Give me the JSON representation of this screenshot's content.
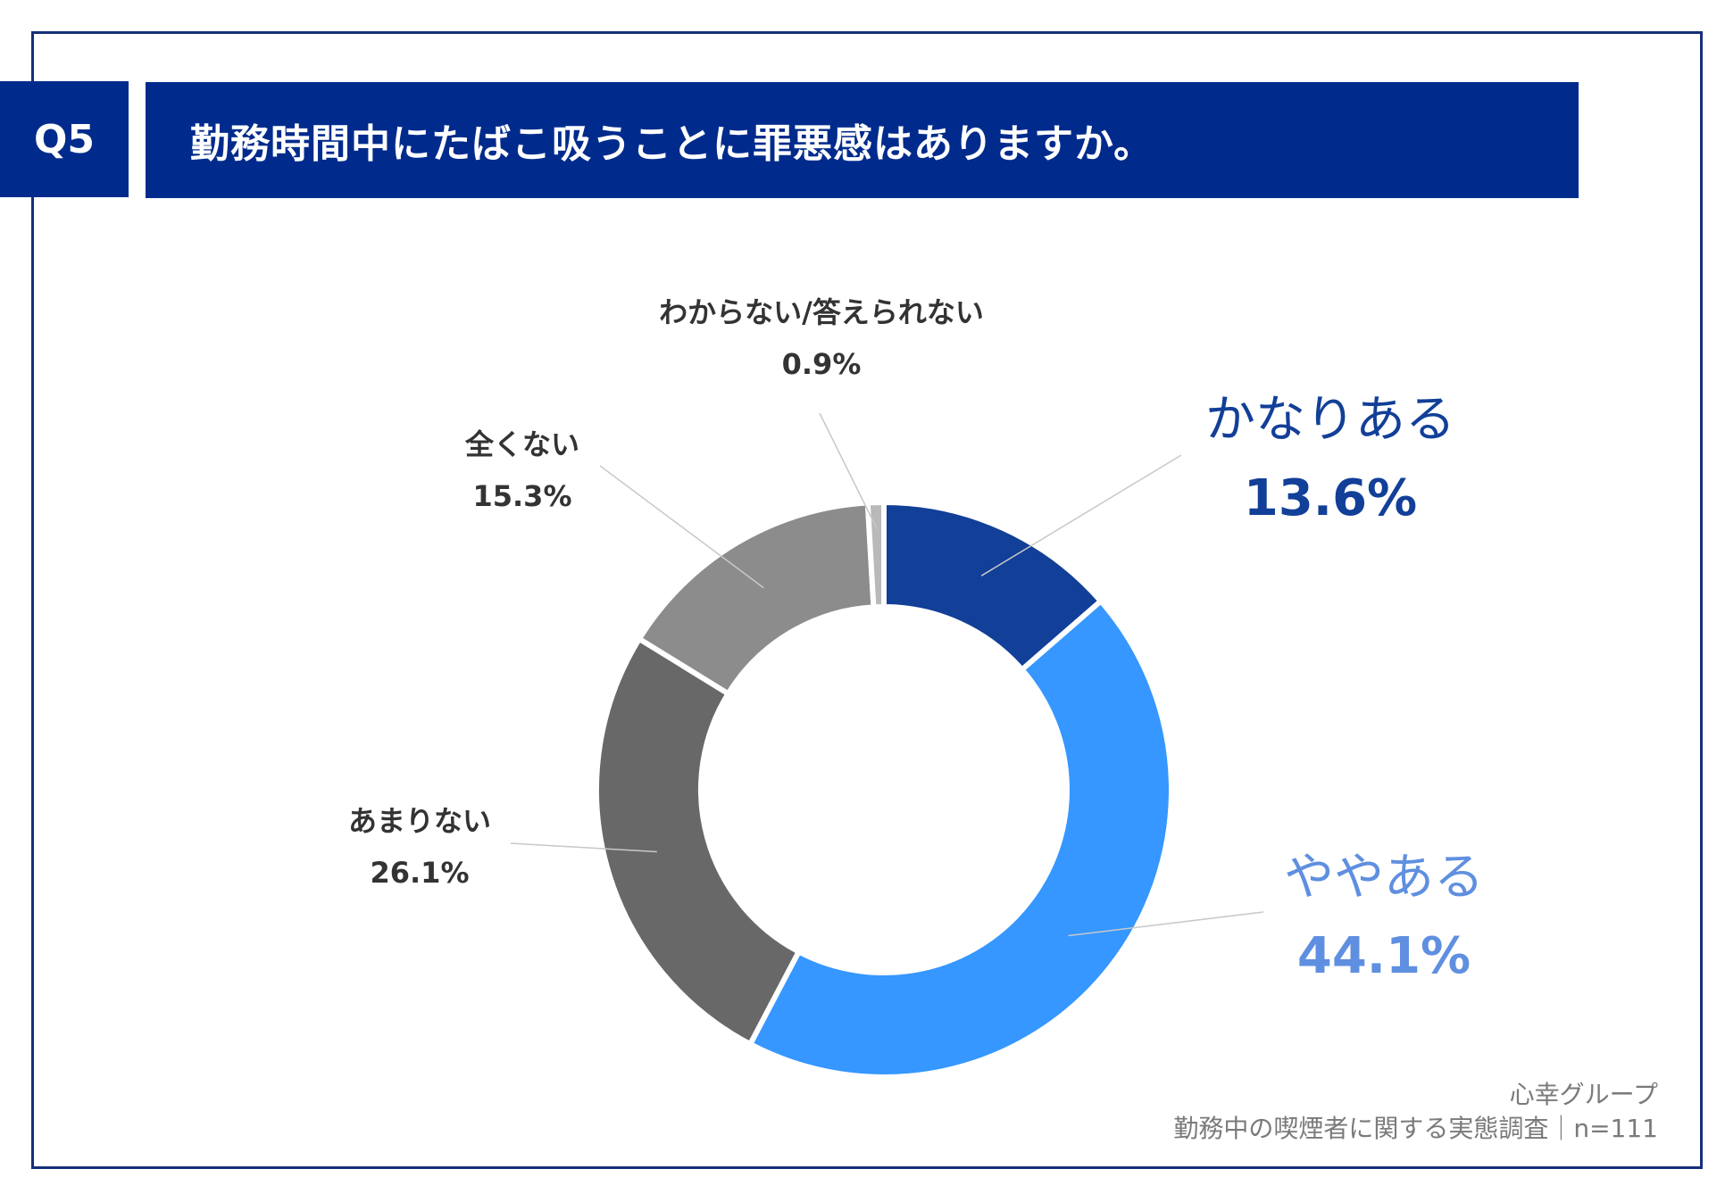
{
  "header": {
    "question_no": "Q5",
    "question": "勤務時間中にたばこ吸うことに罪悪感はありますか。"
  },
  "chart_data": {
    "type": "pie",
    "donut": true,
    "slices": [
      {
        "label": "かなりある",
        "value": 13.6,
        "value_label": "13.6%",
        "color": "#123f98"
      },
      {
        "label": "ややある",
        "value": 44.1,
        "value_label": "44.1%",
        "color": "#3597ff"
      },
      {
        "label": "あまりない",
        "value": 26.1,
        "value_label": "26.1%",
        "color": "#686868"
      },
      {
        "label": "全くない",
        "value": 15.3,
        "value_label": "15.3%",
        "color": "#8c8c8c"
      },
      {
        "label": "わからない/答えられない",
        "value": 0.9,
        "value_label": "0.9%",
        "color": "#b9b9b9"
      }
    ]
  },
  "colors": {
    "header_bg": "#002b8c",
    "frame": "#15307a",
    "label_dark_blue": "#123f98",
    "label_light_blue": "#5f8fe0"
  },
  "footer": {
    "source_line1": "心幸グループ",
    "source_line2": "勤務中の喫煙者に関する実態調査｜n=111"
  }
}
